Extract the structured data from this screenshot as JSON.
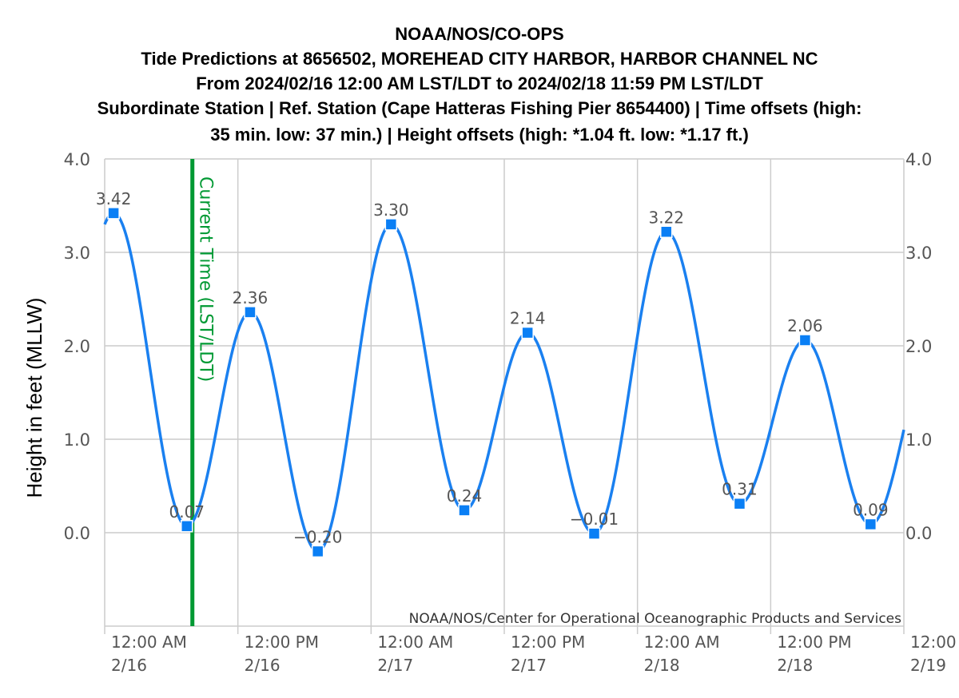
{
  "chart_data": {
    "type": "line",
    "title_lines": [
      "NOAA/NOS/CO-OPS",
      "Tide Predictions at 8656502, MOREHEAD CITY HARBOR, HARBOR CHANNEL NC",
      "From 2024/02/16 12:00 AM LST/LDT to 2024/02/18 11:59 PM LST/LDT",
      "Subordinate Station | Ref. Station (Cape Hatteras Fishing Pier 8654400) | Time offsets (high:",
      "35 min. low: 37 min.) | Height offsets (high: *1.04 ft. low: *1.17 ft.)"
    ],
    "ylabel": "Height in feet (MLLW)",
    "ylim": [
      -1.0,
      4.0
    ],
    "y_ticks": [
      "4.0",
      "3.0",
      "2.0",
      "1.0",
      "0.0"
    ],
    "y_tick_values": [
      4.0,
      3.0,
      2.0,
      1.0,
      0.0
    ],
    "xlim_hours": [
      0,
      72
    ],
    "x_ticks": [
      {
        "hour": 0,
        "time": "12:00 AM",
        "date": "2/16"
      },
      {
        "hour": 12,
        "time": "12:00 PM",
        "date": "2/16"
      },
      {
        "hour": 24,
        "time": "12:00 AM",
        "date": "2/17"
      },
      {
        "hour": 36,
        "time": "12:00 PM",
        "date": "2/17"
      },
      {
        "hour": 48,
        "time": "12:00 AM",
        "date": "2/18"
      },
      {
        "hour": 60,
        "time": "12:00 PM",
        "date": "2/18"
      },
      {
        "hour": 72,
        "time": "12:00",
        "date": "2/19"
      }
    ],
    "series": [
      {
        "points": [
          {
            "hour": 0.8,
            "value": 3.42,
            "label": "3.42"
          },
          {
            "hour": 7.4,
            "value": 0.07,
            "label": "0.07"
          },
          {
            "hour": 13.1,
            "value": 2.36,
            "label": "2.36"
          },
          {
            "hour": 19.2,
            "value": -0.2,
            "label": "−0.20"
          },
          {
            "hour": 25.8,
            "value": 3.3,
            "label": "3.30"
          },
          {
            "hour": 32.4,
            "value": 0.24,
            "label": "0.24"
          },
          {
            "hour": 38.1,
            "value": 2.14,
            "label": "2.14"
          },
          {
            "hour": 44.1,
            "value": -0.01,
            "label": "−0.01"
          },
          {
            "hour": 50.6,
            "value": 3.22,
            "label": "3.22"
          },
          {
            "hour": 57.2,
            "value": 0.31,
            "label": "0.31"
          },
          {
            "hour": 63.1,
            "value": 2.06,
            "label": "2.06"
          },
          {
            "hour": 69.0,
            "value": 0.09,
            "label": "0.09"
          }
        ],
        "start_value": 3.26,
        "end_value": 1.14
      }
    ],
    "current_time": {
      "hour": 7.9,
      "label": "Current Time (LST/LDT)"
    },
    "credit": "NOAA/NOS/Center for Operational Oceanographic Products and Services",
    "grid": true,
    "colors": {
      "line": "#1a80f0",
      "marker": "#0a7ff5",
      "current_time": "#009933",
      "grid": "#cccccc"
    }
  }
}
